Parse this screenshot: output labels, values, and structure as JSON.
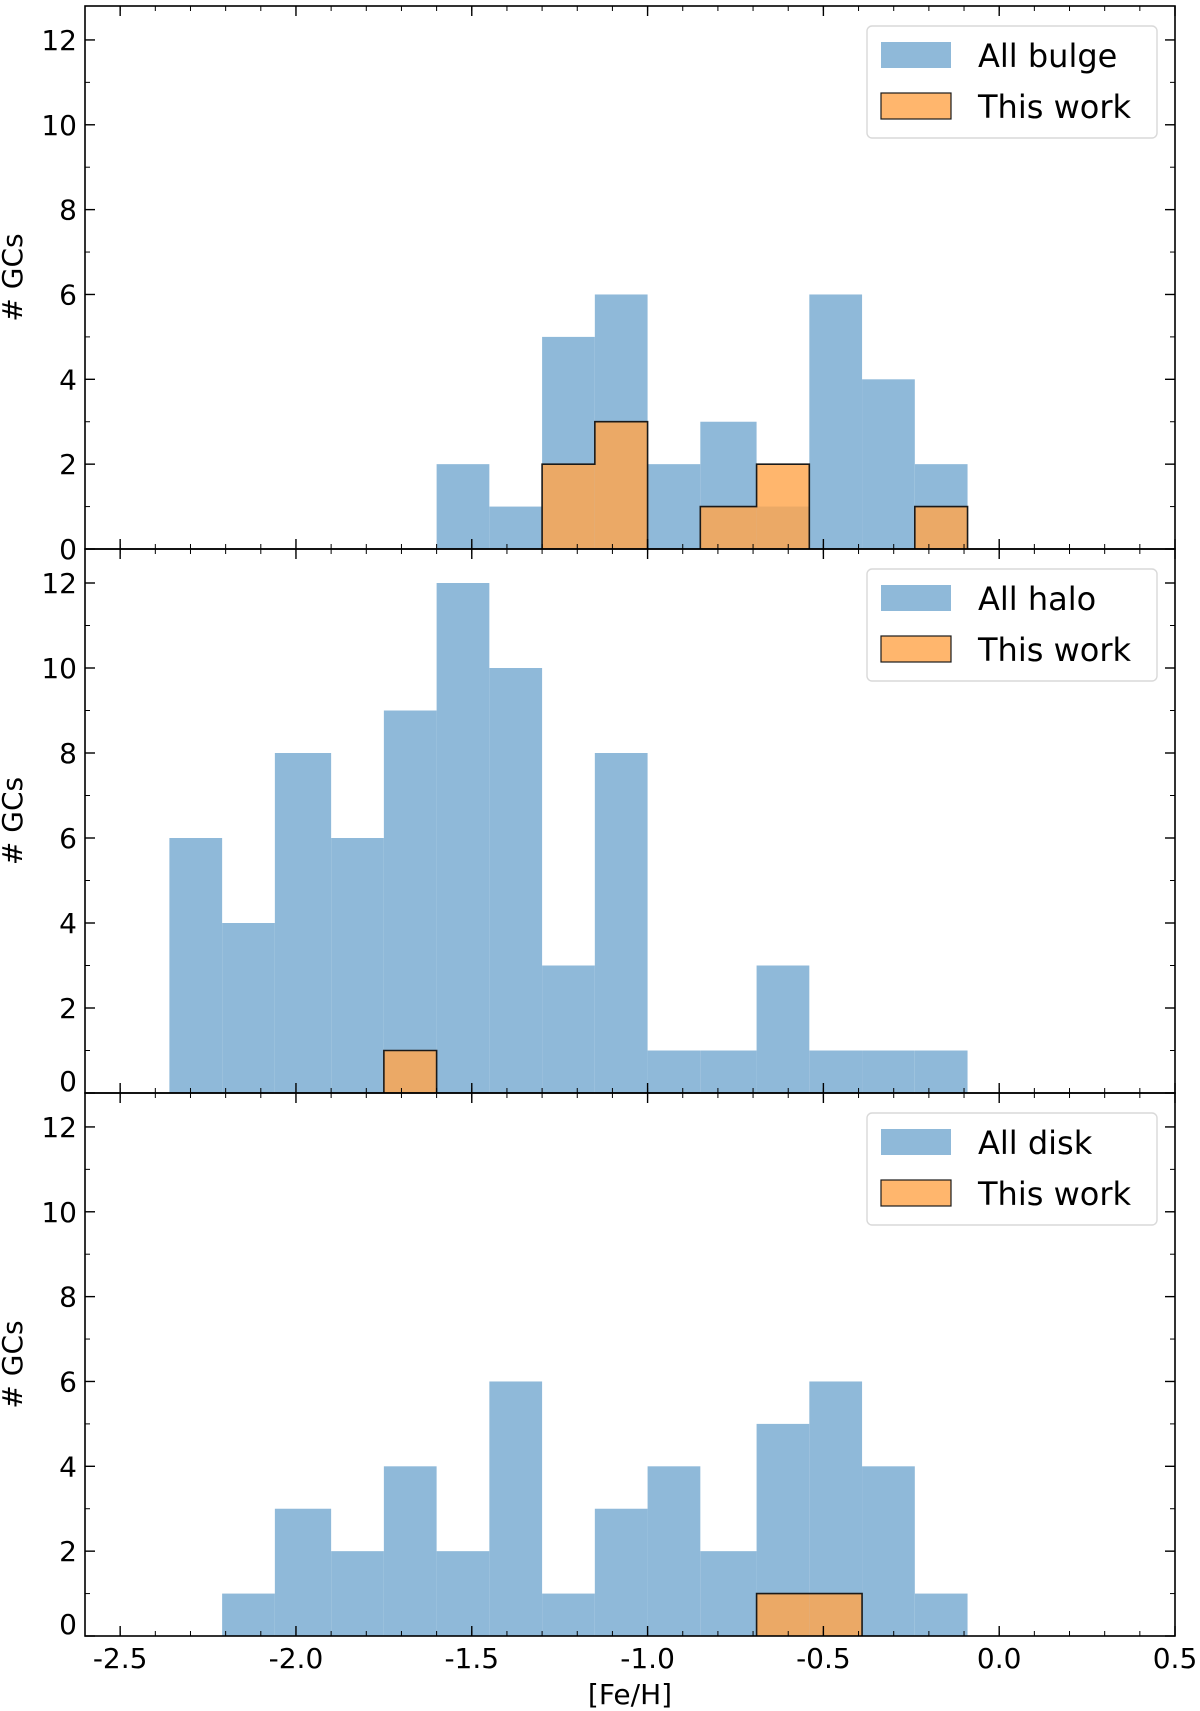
{
  "chart_data": [
    {
      "type": "bar",
      "name": "bulge",
      "xlabel": "",
      "ylabel": "# GCs",
      "xlim": [
        -2.6,
        0.5
      ],
      "ylim": [
        0,
        12.8
      ],
      "xticks": [
        "-2.5",
        "-2.0",
        "-1.5",
        "-1.0",
        "-0.5",
        "0.0",
        "0.5"
      ],
      "yticks": [
        "0",
        "2",
        "4",
        "6",
        "8",
        "10",
        "12"
      ],
      "legend": {
        "location": "top-right",
        "entries": [
          "All bulge",
          "This work"
        ]
      },
      "bin_edges": [
        -2.36,
        -2.21,
        -2.06,
        -1.9,
        -1.75,
        -1.6,
        -1.45,
        -1.3,
        -1.15,
        -1.0,
        -0.85,
        -0.69,
        -0.54,
        -0.39,
        -0.24,
        -0.09
      ],
      "series": [
        {
          "name": "All bulge",
          "values": [
            0,
            0,
            0,
            0,
            0,
            2,
            1,
            5,
            6,
            2,
            3,
            1,
            6,
            4,
            2
          ]
        },
        {
          "name": "This work",
          "values": [
            0,
            0,
            0,
            0,
            0,
            0,
            0,
            2,
            3,
            0,
            1,
            2,
            0,
            0,
            1
          ]
        }
      ]
    },
    {
      "type": "bar",
      "name": "halo",
      "xlabel": "",
      "ylabel": "# GCs",
      "xlim": [
        -2.6,
        0.5
      ],
      "ylim": [
        0,
        12.8
      ],
      "xticks": [
        "-2.5",
        "-2.0",
        "-1.5",
        "-1.0",
        "-0.5",
        "0.0",
        "0.5"
      ],
      "yticks": [
        "0",
        "2",
        "4",
        "6",
        "8",
        "10",
        "12"
      ],
      "legend": {
        "location": "top-right",
        "entries": [
          "All halo",
          "This work"
        ]
      },
      "bin_edges": [
        -2.36,
        -2.21,
        -2.06,
        -1.9,
        -1.75,
        -1.6,
        -1.45,
        -1.3,
        -1.15,
        -1.0,
        -0.85,
        -0.69,
        -0.54,
        -0.39,
        -0.24,
        -0.09
      ],
      "series": [
        {
          "name": "All halo",
          "values": [
            6,
            4,
            8,
            6,
            9,
            12,
            10,
            3,
            8,
            1,
            1,
            3,
            1,
            1,
            1
          ]
        },
        {
          "name": "This work",
          "values": [
            0,
            0,
            0,
            0,
            1,
            0,
            0,
            0,
            0,
            0,
            0,
            0,
            0,
            0,
            0
          ]
        }
      ]
    },
    {
      "type": "bar",
      "name": "disk",
      "xlabel": "[Fe/H]",
      "ylabel": "# GCs",
      "xlim": [
        -2.6,
        0.5
      ],
      "ylim": [
        0,
        12.8
      ],
      "xticks": [
        "-2.5",
        "-2.0",
        "-1.5",
        "-1.0",
        "-0.5",
        "0.0",
        "0.5"
      ],
      "yticks": [
        "0",
        "2",
        "4",
        "6",
        "8",
        "10",
        "12"
      ],
      "legend": {
        "location": "top-right",
        "entries": [
          "All disk",
          "This work"
        ]
      },
      "bin_edges": [
        -2.36,
        -2.21,
        -2.06,
        -1.9,
        -1.75,
        -1.6,
        -1.45,
        -1.3,
        -1.15,
        -1.0,
        -0.85,
        -0.69,
        -0.54,
        -0.39,
        -0.24,
        -0.09
      ],
      "series": [
        {
          "name": "All disk",
          "values": [
            0,
            1,
            3,
            2,
            4,
            2,
            6,
            1,
            3,
            4,
            2,
            5,
            6,
            4,
            1
          ]
        },
        {
          "name": "This work",
          "values": [
            0,
            0,
            0,
            0,
            0,
            0,
            0,
            0,
            0,
            0,
            0,
            1,
            1,
            0,
            0
          ]
        }
      ]
    }
  ],
  "colors": {
    "all": "#8fb9d9",
    "this_work": "#ffa64d",
    "this_work_edge": "#1a1a1a",
    "axis": "#000000",
    "legend_frame": "#d9d9d9"
  }
}
